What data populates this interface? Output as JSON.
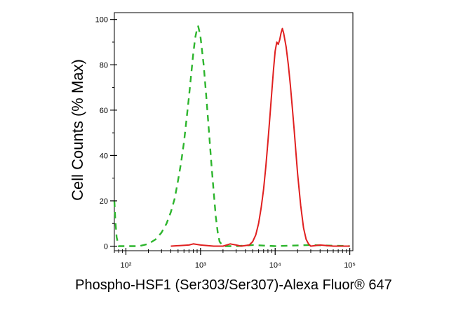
{
  "chart_data": {
    "type": "line",
    "xlabel": "Phospho-HSF1 (Ser303/Ser307)-Alexa Fluor® 647",
    "ylabel": "Cell Counts (% Max)",
    "x_scale": "log",
    "xlim": [
      70,
      110000
    ],
    "ylim": [
      -2,
      103
    ],
    "xticks": [
      {
        "value": 100,
        "label": "10²"
      },
      {
        "value": 1000,
        "label": "10³"
      },
      {
        "value": 10000,
        "label": "10⁴"
      },
      {
        "value": 100000,
        "label": "10⁵"
      }
    ],
    "yticks": [
      0,
      20,
      40,
      60,
      80,
      100
    ],
    "grid": false,
    "series": [
      {
        "color": "#2db52d",
        "dash": true,
        "points": [
          [
            70,
            20
          ],
          [
            72,
            12
          ],
          [
            75,
            4
          ],
          [
            80,
            0
          ],
          [
            100,
            0
          ],
          [
            150,
            0
          ],
          [
            200,
            1
          ],
          [
            250,
            3
          ],
          [
            300,
            6
          ],
          [
            350,
            10
          ],
          [
            400,
            15
          ],
          [
            450,
            21
          ],
          [
            500,
            29
          ],
          [
            550,
            37
          ],
          [
            600,
            46
          ],
          [
            650,
            56
          ],
          [
            700,
            66
          ],
          [
            750,
            76
          ],
          [
            800,
            85
          ],
          [
            850,
            92
          ],
          [
            900,
            96
          ],
          [
            930,
            97
          ],
          [
            960,
            95
          ],
          [
            1000,
            92
          ],
          [
            1100,
            80
          ],
          [
            1200,
            65
          ],
          [
            1300,
            50
          ],
          [
            1400,
            36
          ],
          [
            1500,
            24
          ],
          [
            1600,
            13
          ],
          [
            1700,
            6
          ],
          [
            1800,
            2
          ],
          [
            2000,
            0
          ],
          [
            3000,
            0
          ],
          [
            5000,
            0.5
          ],
          [
            10000,
            0
          ],
          [
            30000,
            0.5
          ],
          [
            100000,
            0
          ]
        ]
      },
      {
        "color": "#e02020",
        "dash": false,
        "points": [
          [
            400,
            0
          ],
          [
            700,
            0.5
          ],
          [
            800,
            1
          ],
          [
            1000,
            0.5
          ],
          [
            1500,
            0
          ],
          [
            2000,
            0
          ],
          [
            2500,
            1
          ],
          [
            3000,
            0.5
          ],
          [
            3500,
            0
          ],
          [
            4500,
            0.5
          ],
          [
            5000,
            2
          ],
          [
            5500,
            5
          ],
          [
            6000,
            10
          ],
          [
            6500,
            17
          ],
          [
            7000,
            25
          ],
          [
            7500,
            35
          ],
          [
            8000,
            46
          ],
          [
            8500,
            57
          ],
          [
            9000,
            68
          ],
          [
            9500,
            78
          ],
          [
            10000,
            86
          ],
          [
            10500,
            90
          ],
          [
            11000,
            89
          ],
          [
            11500,
            91
          ],
          [
            12000,
            94
          ],
          [
            12500,
            96
          ],
          [
            13000,
            94
          ],
          [
            14000,
            88
          ],
          [
            15000,
            80
          ],
          [
            16000,
            71
          ],
          [
            17000,
            61
          ],
          [
            18000,
            51
          ],
          [
            19000,
            41
          ],
          [
            20000,
            32
          ],
          [
            22000,
            18
          ],
          [
            24000,
            8
          ],
          [
            26000,
            3
          ],
          [
            28000,
            1
          ],
          [
            30000,
            0
          ],
          [
            40000,
            0.5
          ],
          [
            60000,
            0
          ],
          [
            100000,
            0
          ]
        ]
      }
    ]
  }
}
